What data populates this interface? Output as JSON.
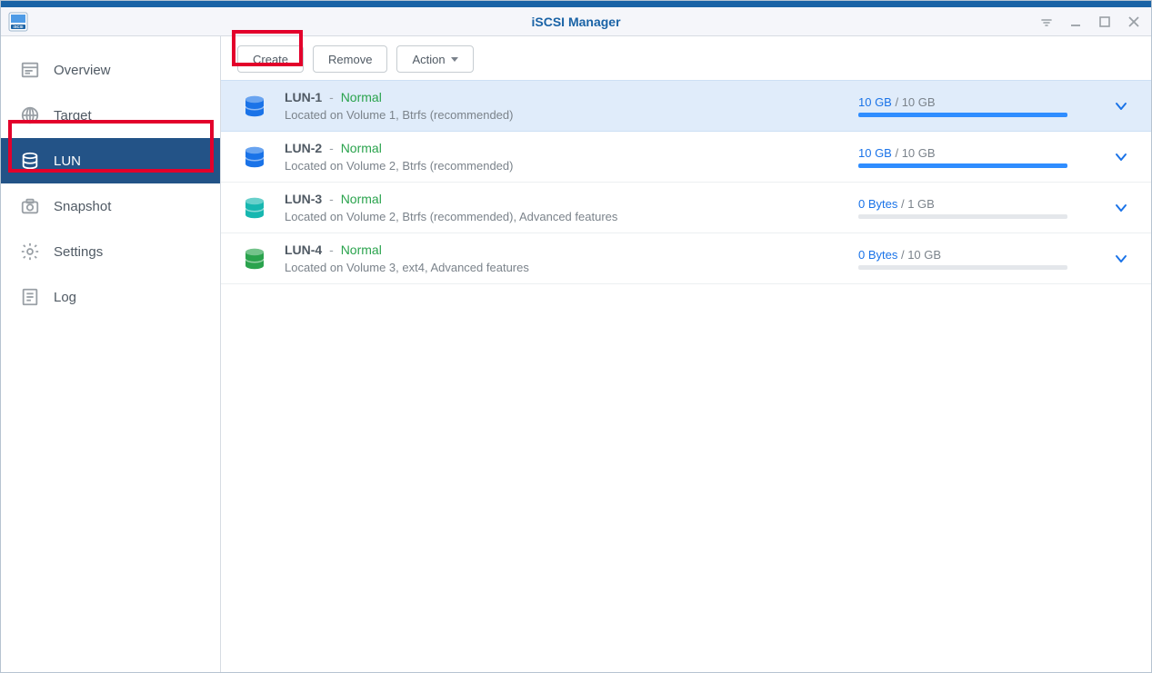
{
  "header": {
    "title": "iSCSI Manager"
  },
  "sidebar": {
    "items": [
      {
        "label": "Overview",
        "active": false
      },
      {
        "label": "Target",
        "active": false
      },
      {
        "label": "LUN",
        "active": true
      },
      {
        "label": "Snapshot",
        "active": false
      },
      {
        "label": "Settings",
        "active": false
      },
      {
        "label": "Log",
        "active": false
      }
    ]
  },
  "toolbar": {
    "create_label": "Create",
    "remove_label": "Remove",
    "action_label": "Action"
  },
  "lun_list": {
    "items": [
      {
        "name": "LUN-1",
        "status": "Normal",
        "location": "Located on Volume 1, Btrfs (recommended)",
        "used": "10 GB",
        "total": "10 GB",
        "progress_percent": 100,
        "icon_color": "#1a73e8",
        "bar_color": "#2f8dff",
        "selected": true
      },
      {
        "name": "LUN-2",
        "status": "Normal",
        "location": "Located on Volume 2, Btrfs (recommended)",
        "used": "10 GB",
        "total": "10 GB",
        "progress_percent": 100,
        "icon_color": "#1a73e8",
        "bar_color": "#2f8dff",
        "selected": false
      },
      {
        "name": "LUN-3",
        "status": "Normal",
        "location": "Located on Volume 2, Btrfs (recommended), Advanced features",
        "used": "0 Bytes",
        "total": "1 GB",
        "progress_percent": 0,
        "icon_color": "#17b7b0",
        "bar_color": "#17b7b0",
        "selected": false
      },
      {
        "name": "LUN-4",
        "status": "Normal",
        "location": "Located on Volume 3, ext4, Advanced features",
        "used": "0 Bytes",
        "total": "10 GB",
        "progress_percent": 0,
        "icon_color": "#2aa34d",
        "bar_color": "#2aa34d",
        "selected": false
      }
    ]
  },
  "colors": {
    "brand": "#1a63a6",
    "highlight_red": "#e3002b",
    "status_green": "#2aa34d",
    "link_blue": "#1a73e8",
    "progress_bg": "#e4e7eb"
  }
}
